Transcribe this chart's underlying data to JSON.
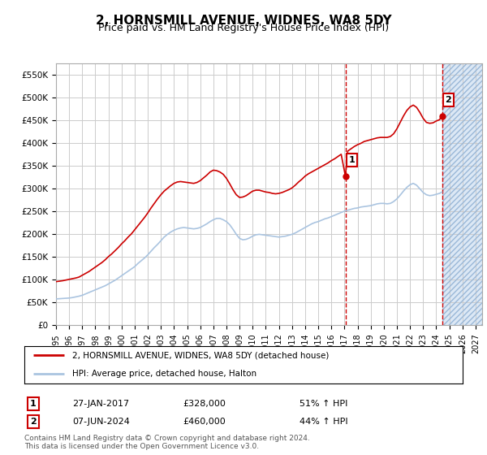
{
  "title": "2, HORNSMILL AVENUE, WIDNES, WA8 5DY",
  "subtitle": "Price paid vs. HM Land Registry's House Price Index (HPI)",
  "xlim_start": 1995.0,
  "xlim_end": 2027.5,
  "ylim_bottom": 0,
  "ylim_top": 575000,
  "yticks": [
    0,
    50000,
    100000,
    150000,
    200000,
    250000,
    300000,
    350000,
    400000,
    450000,
    500000,
    550000
  ],
  "ytick_labels": [
    "£0",
    "£50K",
    "£100K",
    "£150K",
    "£200K",
    "£250K",
    "£300K",
    "£350K",
    "£400K",
    "£450K",
    "£500K",
    "£550K"
  ],
  "xticks": [
    1995,
    1996,
    1997,
    1998,
    1999,
    2000,
    2001,
    2002,
    2003,
    2004,
    2005,
    2006,
    2007,
    2008,
    2009,
    2010,
    2011,
    2012,
    2013,
    2014,
    2015,
    2016,
    2017,
    2018,
    2019,
    2020,
    2021,
    2022,
    2023,
    2024,
    2025,
    2026,
    2027
  ],
  "background_color": "#ffffff",
  "plot_bg_color": "#ffffff",
  "grid_color": "#cccccc",
  "hpi_line_color": "#aac4e0",
  "property_line_color": "#cc0000",
  "sale1_x": 2017.07,
  "sale1_y": 328000,
  "sale1_label": "1",
  "sale2_x": 2024.44,
  "sale2_y": 460000,
  "sale2_label": "2",
  "vline1_color": "#cc0000",
  "vline2_color": "#cc0000",
  "future_shade_start": 2024.44,
  "future_shade_end": 2027.5,
  "future_shade_color": "#dce8f5",
  "legend_line1": "2, HORNSMILL AVENUE, WIDNES, WA8 5DY (detached house)",
  "legend_line2": "HPI: Average price, detached house, Halton",
  "annotation1_date": "27-JAN-2017",
  "annotation1_price": "£328,000",
  "annotation1_hpi": "51% ↑ HPI",
  "annotation2_date": "07-JUN-2024",
  "annotation2_price": "£460,000",
  "annotation2_hpi": "44% ↑ HPI",
  "footer": "Contains HM Land Registry data © Crown copyright and database right 2024.\nThis data is licensed under the Open Government Licence v3.0.",
  "hpi_data_x": [
    1995.0,
    1995.25,
    1995.5,
    1995.75,
    1996.0,
    1996.25,
    1996.5,
    1996.75,
    1997.0,
    1997.25,
    1997.5,
    1997.75,
    1998.0,
    1998.25,
    1998.5,
    1998.75,
    1999.0,
    1999.25,
    1999.5,
    1999.75,
    2000.0,
    2000.25,
    2000.5,
    2000.75,
    2001.0,
    2001.25,
    2001.5,
    2001.75,
    2002.0,
    2002.25,
    2002.5,
    2002.75,
    2003.0,
    2003.25,
    2003.5,
    2003.75,
    2004.0,
    2004.25,
    2004.5,
    2004.75,
    2005.0,
    2005.25,
    2005.5,
    2005.75,
    2006.0,
    2006.25,
    2006.5,
    2006.75,
    2007.0,
    2007.25,
    2007.5,
    2007.75,
    2008.0,
    2008.25,
    2008.5,
    2008.75,
    2009.0,
    2009.25,
    2009.5,
    2009.75,
    2010.0,
    2010.25,
    2010.5,
    2010.75,
    2011.0,
    2011.25,
    2011.5,
    2011.75,
    2012.0,
    2012.25,
    2012.5,
    2012.75,
    2013.0,
    2013.25,
    2013.5,
    2013.75,
    2014.0,
    2014.25,
    2014.5,
    2014.75,
    2015.0,
    2015.25,
    2015.5,
    2015.75,
    2016.0,
    2016.25,
    2016.5,
    2016.75,
    2017.0,
    2017.25,
    2017.5,
    2017.75,
    2018.0,
    2018.25,
    2018.5,
    2018.75,
    2019.0,
    2019.25,
    2019.5,
    2019.75,
    2020.0,
    2020.25,
    2020.5,
    2020.75,
    2021.0,
    2021.25,
    2021.5,
    2021.75,
    2022.0,
    2022.25,
    2022.5,
    2022.75,
    2023.0,
    2023.25,
    2023.5,
    2023.75,
    2024.0,
    2024.25,
    2024.44
  ],
  "hpi_data_y": [
    58000,
    58500,
    59000,
    59500,
    60000,
    61000,
    62500,
    64000,
    66000,
    69000,
    72000,
    75000,
    78000,
    81000,
    84000,
    87000,
    91000,
    95000,
    99000,
    104000,
    109000,
    114000,
    119000,
    124000,
    129000,
    136000,
    142000,
    148000,
    155000,
    163000,
    171000,
    178000,
    186000,
    194000,
    200000,
    205000,
    209000,
    212000,
    214000,
    215000,
    214000,
    213000,
    212000,
    213000,
    215000,
    219000,
    223000,
    228000,
    232000,
    235000,
    235000,
    232000,
    228000,
    221000,
    211000,
    200000,
    191000,
    188000,
    189000,
    192000,
    196000,
    199000,
    200000,
    199000,
    198000,
    197000,
    196000,
    195000,
    194000,
    195000,
    196000,
    198000,
    200000,
    203000,
    207000,
    211000,
    215000,
    219000,
    223000,
    226000,
    228000,
    231000,
    234000,
    236000,
    239000,
    242000,
    245000,
    248000,
    251000,
    253000,
    255000,
    257000,
    258000,
    260000,
    261000,
    262000,
    263000,
    265000,
    267000,
    268000,
    268000,
    267000,
    268000,
    272000,
    278000,
    286000,
    295000,
    303000,
    309000,
    312000,
    308000,
    300000,
    292000,
    287000,
    285000,
    286000,
    288000,
    290000,
    293000
  ],
  "property_data_x": [
    1995.0,
    1995.25,
    1995.5,
    1995.75,
    1996.0,
    1996.25,
    1996.5,
    1996.75,
    1997.0,
    1997.25,
    1997.5,
    1997.75,
    1998.0,
    1998.25,
    1998.5,
    1998.75,
    1999.0,
    1999.25,
    1999.5,
    1999.75,
    2000.0,
    2000.25,
    2000.5,
    2000.75,
    2001.0,
    2001.25,
    2001.5,
    2001.75,
    2002.0,
    2002.25,
    2002.5,
    2002.75,
    2003.0,
    2003.25,
    2003.5,
    2003.75,
    2004.0,
    2004.25,
    2004.5,
    2004.75,
    2005.0,
    2005.25,
    2005.5,
    2005.75,
    2006.0,
    2006.25,
    2006.5,
    2006.75,
    2007.0,
    2007.25,
    2007.5,
    2007.75,
    2008.0,
    2008.25,
    2008.5,
    2008.75,
    2009.0,
    2009.25,
    2009.5,
    2009.75,
    2010.0,
    2010.25,
    2010.5,
    2010.75,
    2011.0,
    2011.25,
    2011.5,
    2011.75,
    2012.0,
    2012.25,
    2012.5,
    2012.75,
    2013.0,
    2013.25,
    2013.5,
    2013.75,
    2014.0,
    2014.25,
    2014.5,
    2014.75,
    2015.0,
    2015.25,
    2015.5,
    2015.75,
    2016.0,
    2016.25,
    2016.5,
    2016.75,
    2017.07,
    2017.25,
    2017.5,
    2017.75,
    2018.0,
    2018.25,
    2018.5,
    2018.75,
    2019.0,
    2019.25,
    2019.5,
    2019.75,
    2020.0,
    2020.25,
    2020.5,
    2020.75,
    2021.0,
    2021.25,
    2021.5,
    2021.75,
    2022.0,
    2022.25,
    2022.5,
    2022.75,
    2023.0,
    2023.25,
    2023.5,
    2023.75,
    2024.0,
    2024.25,
    2024.44
  ],
  "property_data_y": [
    96000,
    97000,
    98000,
    99500,
    101000,
    102500,
    104000,
    106000,
    110000,
    114000,
    118000,
    123000,
    128000,
    133000,
    138000,
    144000,
    151000,
    157000,
    164000,
    171000,
    179000,
    186000,
    194000,
    201000,
    210000,
    219000,
    228000,
    237000,
    247000,
    258000,
    268000,
    278000,
    287000,
    295000,
    301000,
    307000,
    312000,
    315000,
    316000,
    315000,
    314000,
    313000,
    312000,
    314000,
    318000,
    324000,
    330000,
    337000,
    341000,
    340000,
    337000,
    332000,
    323000,
    311000,
    298000,
    287000,
    281000,
    282000,
    285000,
    290000,
    295000,
    297000,
    297000,
    295000,
    293000,
    292000,
    290000,
    289000,
    290000,
    292000,
    295000,
    298000,
    302000,
    308000,
    315000,
    321000,
    328000,
    333000,
    337000,
    341000,
    345000,
    349000,
    353000,
    357000,
    362000,
    366000,
    371000,
    376000,
    328000,
    383000,
    388000,
    393000,
    397000,
    400000,
    404000,
    406000,
    408000,
    410000,
    412000,
    413000,
    413000,
    413000,
    415000,
    421000,
    432000,
    446000,
    460000,
    472000,
    480000,
    484000,
    479000,
    468000,
    455000,
    446000,
    444000,
    445000,
    449000,
    452000,
    460000
  ],
  "title_fontsize": 11,
  "subtitle_fontsize": 9
}
